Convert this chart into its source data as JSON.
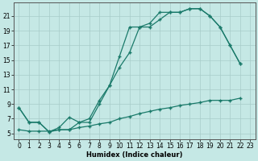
{
  "background_color": "#c5e8e5",
  "grid_color": "#a8ccc9",
  "line_color": "#1a7a6a",
  "xlabel": "Humidex (Indice chaleur)",
  "xlim": [
    -0.5,
    23.5
  ],
  "ylim": [
    4.2,
    22.8
  ],
  "xticks": [
    0,
    1,
    2,
    3,
    4,
    5,
    6,
    7,
    8,
    9,
    10,
    11,
    12,
    13,
    14,
    15,
    16,
    17,
    18,
    19,
    20,
    21,
    22,
    23
  ],
  "yticks": [
    5,
    7,
    9,
    11,
    13,
    15,
    17,
    19,
    21
  ],
  "l1_x": [
    0,
    1,
    2,
    3,
    4,
    5,
    6,
    7,
    8,
    9,
    10,
    11,
    12,
    13,
    14,
    15,
    16,
    17,
    18,
    19,
    20,
    21,
    22
  ],
  "l1_y": [
    8.5,
    6.5,
    6.5,
    5.2,
    5.8,
    7.2,
    6.5,
    7.0,
    9.5,
    11.5,
    15.5,
    19.5,
    19.5,
    20.0,
    21.5,
    21.5,
    21.5,
    22.0,
    22.0,
    21.0,
    19.5,
    17.0,
    14.5
  ],
  "l2_x": [
    0,
    1,
    2,
    3,
    4,
    5,
    6,
    7,
    8,
    9,
    10,
    11,
    12,
    13,
    14,
    15,
    16,
    17,
    18,
    19,
    20,
    21,
    22
  ],
  "l2_y": [
    8.5,
    6.5,
    6.5,
    5.2,
    5.5,
    5.5,
    6.5,
    6.5,
    9.0,
    11.5,
    14.0,
    16.0,
    19.5,
    19.5,
    20.5,
    21.5,
    21.5,
    22.0,
    22.0,
    21.0,
    19.5,
    17.0,
    14.5
  ],
  "l3_x": [
    0,
    1,
    2,
    3,
    4,
    5,
    6,
    7,
    8,
    9,
    10,
    11,
    12,
    13,
    14,
    15,
    16,
    17,
    18,
    19,
    20,
    21,
    22
  ],
  "l3_y": [
    5.5,
    5.3,
    5.3,
    5.3,
    5.5,
    5.5,
    5.8,
    6.0,
    6.3,
    6.5,
    7.0,
    7.3,
    7.7,
    8.0,
    8.3,
    8.5,
    8.8,
    9.0,
    9.2,
    9.5,
    9.5,
    9.5,
    9.8
  ],
  "tick_fontsize": 5.5,
  "label_fontsize": 6.0
}
